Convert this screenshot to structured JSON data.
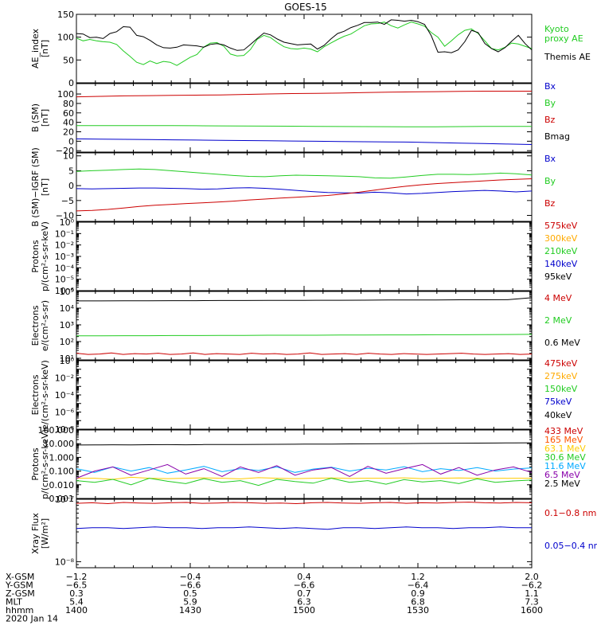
{
  "figure": {
    "title": "GOES-15"
  },
  "chart_data": [
    {
      "id": "ae",
      "type": "line",
      "ylabel": "AE_index\n[nT]",
      "ylim": [
        0,
        150
      ],
      "yscale": "linear",
      "yticks": [
        0,
        50,
        100,
        150
      ],
      "yticklabels": [
        "0",
        "50",
        "100",
        "150"
      ],
      "series": [
        {
          "name": "Kyoto\nproxy AE",
          "color": "#22cc22",
          "values": [
            98,
            92,
            95,
            92,
            90,
            89,
            84,
            70,
            58,
            45,
            40,
            48,
            42,
            47,
            45,
            38,
            47,
            56,
            62,
            78,
            87,
            88,
            80,
            63,
            59,
            60,
            73,
            95,
            104,
            99,
            88,
            79,
            75,
            74,
            76,
            74,
            68,
            79,
            87,
            95,
            102,
            107,
            116,
            125,
            129,
            130,
            133,
            125,
            120,
            127,
            133,
            129,
            124,
            110,
            100,
            80,
            92,
            105,
            115,
            118,
            108,
            92,
            75,
            72,
            78,
            87,
            85,
            80,
            75
          ]
        },
        {
          "name": "Themis AE",
          "color": "#000000",
          "values": [
            108,
            107,
            99,
            100,
            97,
            108,
            112,
            123,
            122,
            104,
            101,
            93,
            83,
            77,
            76,
            78,
            83,
            82,
            81,
            78,
            84,
            86,
            83,
            76,
            71,
            72,
            84,
            97,
            109,
            105,
            96,
            89,
            86,
            83,
            84,
            85,
            74,
            82,
            96,
            108,
            113,
            121,
            126,
            132,
            132,
            133,
            128,
            138,
            137,
            135,
            137,
            134,
            128,
            103,
            67,
            68,
            66,
            72,
            90,
            115,
            110,
            86,
            75,
            68,
            77,
            91,
            104,
            86,
            72
          ]
        }
      ]
    },
    {
      "id": "bsm",
      "type": "line",
      "ylabel": "B (SM)\n[nT]",
      "ylim": [
        -23,
        122
      ],
      "yscale": "linear",
      "yticks": [
        -20,
        0,
        20,
        40,
        60,
        80,
        100
      ],
      "yticklabels": [
        "−20",
        "0",
        "20",
        "40",
        "60",
        "80",
        "100"
      ],
      "series": [
        {
          "name": "Bx",
          "color": "#0000cc",
          "values": [
            5,
            4.5,
            4,
            3.5,
            3,
            2.5,
            2,
            1.5,
            1,
            0.5,
            0,
            -0.5,
            -1,
            -1.5,
            -2,
            -3,
            -4,
            -5,
            -6,
            -7
          ]
        },
        {
          "name": "By",
          "color": "#22cc22",
          "values": [
            33,
            33,
            33,
            33,
            33,
            32.8,
            32.5,
            32.3,
            32,
            31.8,
            31.5,
            31.2,
            31,
            30.8,
            30.5,
            30.5,
            31,
            31.3,
            31.5,
            31.5
          ]
        },
        {
          "name": "Bz",
          "color": "#cc0000",
          "values": [
            94,
            95,
            96,
            96.5,
            97,
            97.5,
            98,
            99,
            100,
            101,
            101.5,
            102,
            103,
            104,
            104.5,
            105,
            105.5,
            106,
            106,
            106
          ]
        },
        {
          "name": "Bmag",
          "color": "#000000",
          "values": []
        }
      ]
    },
    {
      "id": "bigrf",
      "type": "line",
      "ylabel": "B (SM)−IGRF (SM)\n[nT]",
      "ylim": [
        -12,
        11
      ],
      "yscale": "linear",
      "yticks": [
        -10,
        -5,
        0,
        5,
        10
      ],
      "yticklabels": [
        "−10",
        "−5",
        "0",
        "5",
        "10"
      ],
      "series": [
        {
          "name": "Bx",
          "color": "#0000cc",
          "values": [
            -1.0,
            -1.1,
            -1.0,
            -0.9,
            -0.8,
            -0.8,
            -0.9,
            -1.0,
            -1.2,
            -1.1,
            -0.8,
            -0.7,
            -0.9,
            -1.2,
            -1.6,
            -2.0,
            -2.3,
            -2.4,
            -2.5,
            -2.2,
            -2.4,
            -2.8,
            -2.6,
            -2.3,
            -2.0,
            -1.8,
            -1.6,
            -1.8,
            -2.1,
            -1.8
          ]
        },
        {
          "name": "By",
          "color": "#22cc22",
          "values": [
            4.8,
            5.0,
            5.2,
            5.4,
            5.6,
            5.4,
            5.0,
            4.6,
            4.2,
            3.8,
            3.4,
            3.1,
            3.0,
            3.3,
            3.5,
            3.4,
            3.3,
            3.2,
            3.0,
            2.6,
            2.5,
            2.9,
            3.4,
            3.8,
            3.8,
            3.7,
            3.9,
            4.2,
            4.0,
            3.6
          ]
        },
        {
          "name": "Bz",
          "color": "#cc0000",
          "values": [
            -8.5,
            -8.3,
            -8.0,
            -7.5,
            -7.0,
            -6.6,
            -6.3,
            -6.0,
            -5.8,
            -5.5,
            -5.2,
            -4.8,
            -4.5,
            -4.2,
            -3.9,
            -3.6,
            -3.3,
            -2.8,
            -2.2,
            -1.5,
            -0.8,
            -0.2,
            0.3,
            0.7,
            1.0,
            1.3,
            1.6,
            1.9,
            2.1,
            2.3
          ]
        }
      ]
    },
    {
      "id": "protons-mag",
      "type": "line",
      "ylabel": "Protons\np/(cm²-s-sr-keV)",
      "ylim": [
        1e-06,
        1
      ],
      "yscale": "log",
      "yticks": [
        1e-06,
        1e-05,
        0.0001,
        0.001,
        0.01,
        0.1,
        1
      ],
      "yticklabels": [
        "10⁻⁶",
        "10⁻⁵",
        "10⁻⁴",
        "10⁻³",
        "10⁻²",
        "10⁻¹",
        "10⁰"
      ],
      "series": [
        {
          "name": "575keV",
          "color": "#cc0000",
          "values": []
        },
        {
          "name": "300keV",
          "color": "#ffaa00",
          "values": []
        },
        {
          "name": "210keV",
          "color": "#22cc22",
          "values": []
        },
        {
          "name": "140keV",
          "color": "#0000cc",
          "values": []
        },
        {
          "name": "95keV",
          "color": "#000000",
          "values": []
        }
      ]
    },
    {
      "id": "electrons-epead",
      "type": "line",
      "ylabel": "Electrons\ne/(cm²-s-sr)",
      "ylim": [
        8,
        100000
      ],
      "yscale": "log",
      "yticks": [
        10,
        100,
        1000,
        10000,
        100000
      ],
      "yticklabels": [
        "10¹",
        "10²",
        "10³",
        "10⁴",
        "10⁵"
      ],
      "series": [
        {
          "name": "4 MeV",
          "color": "#cc0000",
          "values": [
            20,
            17,
            18,
            21,
            17,
            19,
            18,
            20,
            17,
            18,
            21,
            17,
            19,
            18,
            17,
            20,
            18,
            19,
            17,
            18,
            21,
            17,
            18,
            19,
            17,
            20,
            18,
            17,
            19,
            18,
            17,
            18,
            19,
            20,
            18,
            17,
            18,
            19,
            17,
            18
          ]
        },
        {
          "name": "2 MeV",
          "color": "#22cc22",
          "values": [
            220,
            220,
            225,
            225,
            230,
            230,
            235,
            235,
            240,
            240,
            240,
            245,
            245,
            250,
            250,
            255,
            255,
            260,
            265,
            270
          ]
        },
        {
          "name": "0.6 MeV",
          "color": "#000000",
          "values": [
            27000,
            27000,
            27500,
            27500,
            28000,
            28000,
            28500,
            28500,
            29000,
            29000,
            29500,
            29500,
            30000,
            30500,
            31000,
            31000,
            31500,
            31500,
            32000,
            42000
          ]
        }
      ]
    },
    {
      "id": "electrons-mag",
      "type": "line",
      "ylabel": "Electrons\ne/(cm²-s-sr-keV)",
      "ylim": [
        1e-08,
        1
      ],
      "yscale": "log",
      "yticks": [
        1e-08,
        1e-07,
        1e-06,
        1e-05,
        0.0001,
        0.001,
        0.01,
        0.1,
        1
      ],
      "yticklabels": [
        "10⁻⁸",
        "",
        "10⁻⁶",
        "",
        "10⁻⁴",
        "",
        "10⁻²",
        "",
        "10⁰"
      ],
      "series": [
        {
          "name": "475keV",
          "color": "#cc0000",
          "values": []
        },
        {
          "name": "275keV",
          "color": "#ffaa00",
          "values": []
        },
        {
          "name": "150keV",
          "color": "#22cc22",
          "values": []
        },
        {
          "name": "75keV",
          "color": "#0000cc",
          "values": []
        },
        {
          "name": "40keV",
          "color": "#000000",
          "values": []
        }
      ]
    },
    {
      "id": "protons-epead",
      "type": "line",
      "ylabel": "Protons\np/(cm²-s-sr-keV)",
      "ylim": [
        0.001,
        100
      ],
      "yscale": "log",
      "yticks": [
        0.001,
        0.01,
        0.1,
        1,
        10,
        100
      ],
      "yticklabels": [
        "0.001",
        "0.010",
        "0.100",
        "1.000",
        "10.000",
        "100.000"
      ],
      "series": [
        {
          "name": "433 MeV",
          "color": "#cc0000",
          "values": []
        },
        {
          "name": "165 MeV",
          "color": "#ff5500",
          "values": []
        },
        {
          "name": "63.1 MeV",
          "color": "#ffcc00",
          "values": [
            0.03,
            0.03,
            0.025,
            0.035,
            0.03,
            0.028,
            0.03,
            0.032,
            0.03,
            0.027,
            0.033,
            0.03,
            0.028,
            0.03,
            0.031,
            0.029,
            0.03,
            0.03,
            0.032,
            0.028,
            0.03,
            0.031,
            0.03,
            0.029,
            0.03,
            0.03
          ]
        },
        {
          "name": "30.6 MeV",
          "color": "#22cc22",
          "values": [
            0.02,
            0.015,
            0.025,
            0.01,
            0.03,
            0.018,
            0.012,
            0.028,
            0.015,
            0.02,
            0.009,
            0.025,
            0.017,
            0.013,
            0.03,
            0.015,
            0.02,
            0.011,
            0.024,
            0.016,
            0.02,
            0.012,
            0.027,
            0.015,
            0.019,
            0.022
          ]
        },
        {
          "name": "11.6 MeV",
          "color": "#00aaff",
          "values": [
            0.15,
            0.08,
            0.2,
            0.1,
            0.18,
            0.07,
            0.12,
            0.22,
            0.09,
            0.15,
            0.11,
            0.2,
            0.08,
            0.14,
            0.19,
            0.1,
            0.16,
            0.12,
            0.21,
            0.09,
            0.15,
            0.11,
            0.18,
            0.1,
            0.14,
            0.17
          ]
        },
        {
          "name": "6.5 MeV",
          "color": "#8800aa",
          "values": [
            0.03,
            0.1,
            0.2,
            0.05,
            0.12,
            0.3,
            0.06,
            0.15,
            0.04,
            0.2,
            0.08,
            0.25,
            0.05,
            0.12,
            0.18,
            0.04,
            0.22,
            0.07,
            0.15,
            0.3,
            0.06,
            0.18,
            0.05,
            0.12,
            0.2,
            0.08
          ]
        },
        {
          "name": "2.5 MeV",
          "color": "#000000",
          "values": [
            8.0,
            8.1,
            8.3,
            8.2,
            8.4,
            8.5,
            8.3,
            8.6,
            8.7,
            8.8,
            8.9,
            9.0,
            9.1,
            9.3,
            9.4,
            9.6,
            9.8,
            10.0,
            10.2,
            10.4,
            10.6,
            10.8,
            11.0,
            11.2,
            11.4,
            11.6
          ]
        }
      ]
    },
    {
      "id": "xray",
      "type": "line",
      "ylabel": "Xray Flux\n[W/m²]",
      "ylim": [
        8e-09,
        1e-07
      ],
      "yscale": "log",
      "yticks": [
        1e-08,
        1e-07
      ],
      "yticklabels": [
        "10⁻⁸",
        "10⁻⁷"
      ],
      "series": [
        {
          "name": "0.1−0.8 nm",
          "color": "#cc0000",
          "values": [
            8.6e-08,
            8.8e-08,
            8.5e-08,
            8.9e-08,
            8.7e-08,
            8.6e-08,
            8.8e-08,
            8.9e-08,
            8.6e-08,
            8.7e-08,
            8.9e-08,
            8.8e-08,
            8.6e-08,
            8.7e-08,
            8.5e-08,
            8.8e-08,
            8.9e-08,
            8.7e-08,
            8.6e-08,
            8.8e-08,
            8.9e-08,
            8.6e-08,
            8.8e-08,
            8.7e-08,
            8.9e-08,
            9e-08,
            8.8e-08,
            8.7e-08,
            8.9e-08,
            8.8e-08
          ]
        },
        {
          "name": "0.05−0.4 nm",
          "color": "#0000cc",
          "values": [
            3.4e-08,
            3.5e-08,
            3.5e-08,
            3.4e-08,
            3.5e-08,
            3.6e-08,
            3.5e-08,
            3.5e-08,
            3.4e-08,
            3.5e-08,
            3.5e-08,
            3.6e-08,
            3.5e-08,
            3.4e-08,
            3.5e-08,
            3.4e-08,
            3.3e-08,
            3.5e-08,
            3.5e-08,
            3.4e-08,
            3.5e-08,
            3.6e-08,
            3.5e-08,
            3.5e-08,
            3.4e-08,
            3.5e-08,
            3.5e-08,
            3.6e-08,
            3.5e-08,
            3.5e-08
          ]
        }
      ]
    }
  ],
  "footer": {
    "rows": [
      {
        "label": "X-GSM",
        "values": [
          "−1.2",
          "−0.4",
          "0.4",
          "1.2",
          "2.0"
        ]
      },
      {
        "label": "Y-GSM",
        "values": [
          "−6.5",
          "−6.6",
          "−6.6",
          "−6.4",
          "−6.2"
        ]
      },
      {
        "label": "Z-GSM",
        "values": [
          "0.3",
          "0.5",
          "0.7",
          "0.9",
          "1.1"
        ]
      },
      {
        "label": "MLT",
        "values": [
          "5.4",
          "5.9",
          "6.3",
          "6.8",
          "7.3"
        ]
      },
      {
        "label": "hhmm",
        "values": [
          "1400",
          "1430",
          "1500",
          "1530",
          "1600"
        ]
      }
    ],
    "date": "2020 Jan 14"
  }
}
